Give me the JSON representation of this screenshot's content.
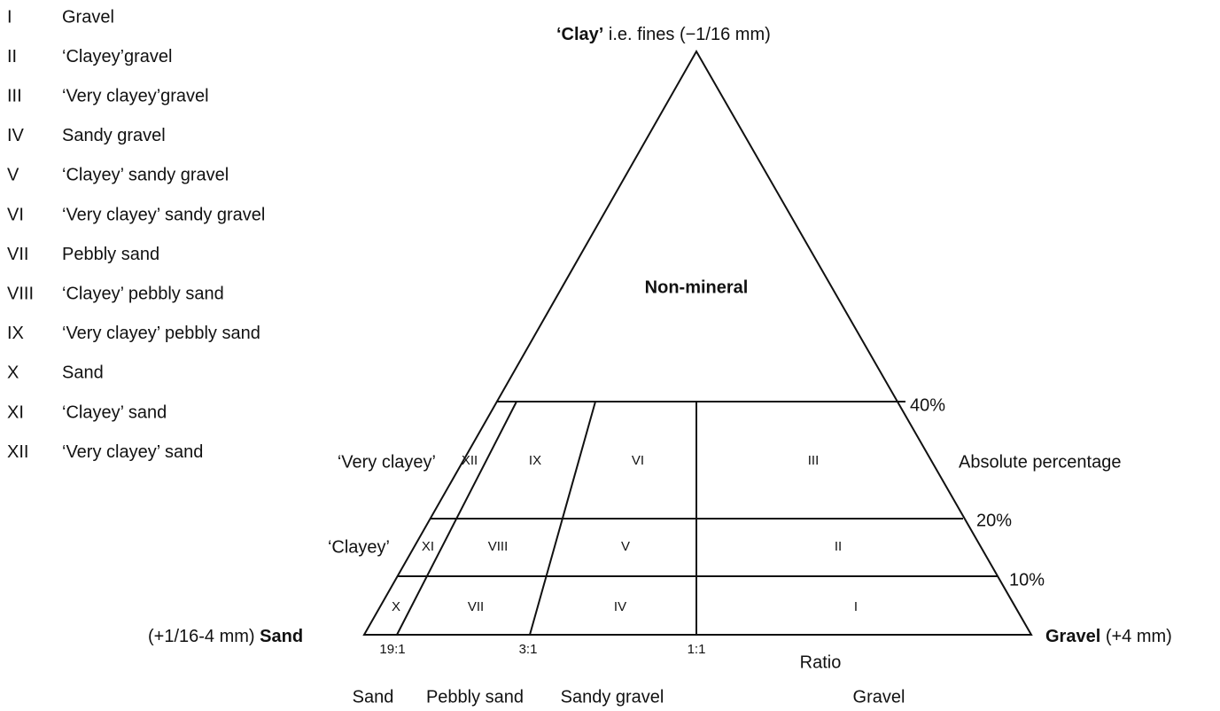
{
  "legend": [
    {
      "numeral": "I",
      "label": "Gravel"
    },
    {
      "numeral": "II",
      "label": "‘Clayey’gravel"
    },
    {
      "numeral": "III",
      "label": "‘Very clayey’gravel"
    },
    {
      "numeral": "IV",
      "label": "Sandy gravel"
    },
    {
      "numeral": "V",
      "label": "‘Clayey’ sandy gravel"
    },
    {
      "numeral": "VI",
      "label": "‘Very clayey’ sandy gravel"
    },
    {
      "numeral": "VII",
      "label": "Pebbly sand"
    },
    {
      "numeral": "VIII",
      "label": "‘Clayey’ pebbly sand"
    },
    {
      "numeral": "IX",
      "label": "‘Very clayey’ pebbly sand"
    },
    {
      "numeral": "X",
      "label": "Sand"
    },
    {
      "numeral": "XI",
      "label": "‘Clayey’ sand"
    },
    {
      "numeral": "XII",
      "label": "‘Very clayey’ sand"
    }
  ],
  "apex": {
    "top_bold": "‘Clay’",
    "top_rest": "i.e. fines (−1/16 mm)",
    "left_rest": "(+1/16-4 mm)",
    "left_bold": "Sand",
    "right_bold": "Gravel",
    "right_rest": "(+4 mm)"
  },
  "regions": {
    "non_mineral": "Non-mineral",
    "XII": "XII",
    "IX": "IX",
    "VI": "VI",
    "III": "III",
    "XI": "XI",
    "VIII": "VIII",
    "V": "V",
    "II": "II",
    "X": "X",
    "VII": "VII",
    "IV": "IV",
    "I": "I"
  },
  "side_labels": {
    "very_clayey": "‘Very clayey’",
    "clayey": "‘Clayey’"
  },
  "percentages": {
    "p40": "40%",
    "p20": "20%",
    "p10": "10%",
    "axis": "Absolute percentage"
  },
  "ratios": {
    "r19": "19:1",
    "r3": "3:1",
    "r1": "1:1",
    "axis": "Ratio"
  },
  "classes": [
    "Sand",
    "Pebbly sand",
    "Sandy gravel",
    "Gravel"
  ]
}
